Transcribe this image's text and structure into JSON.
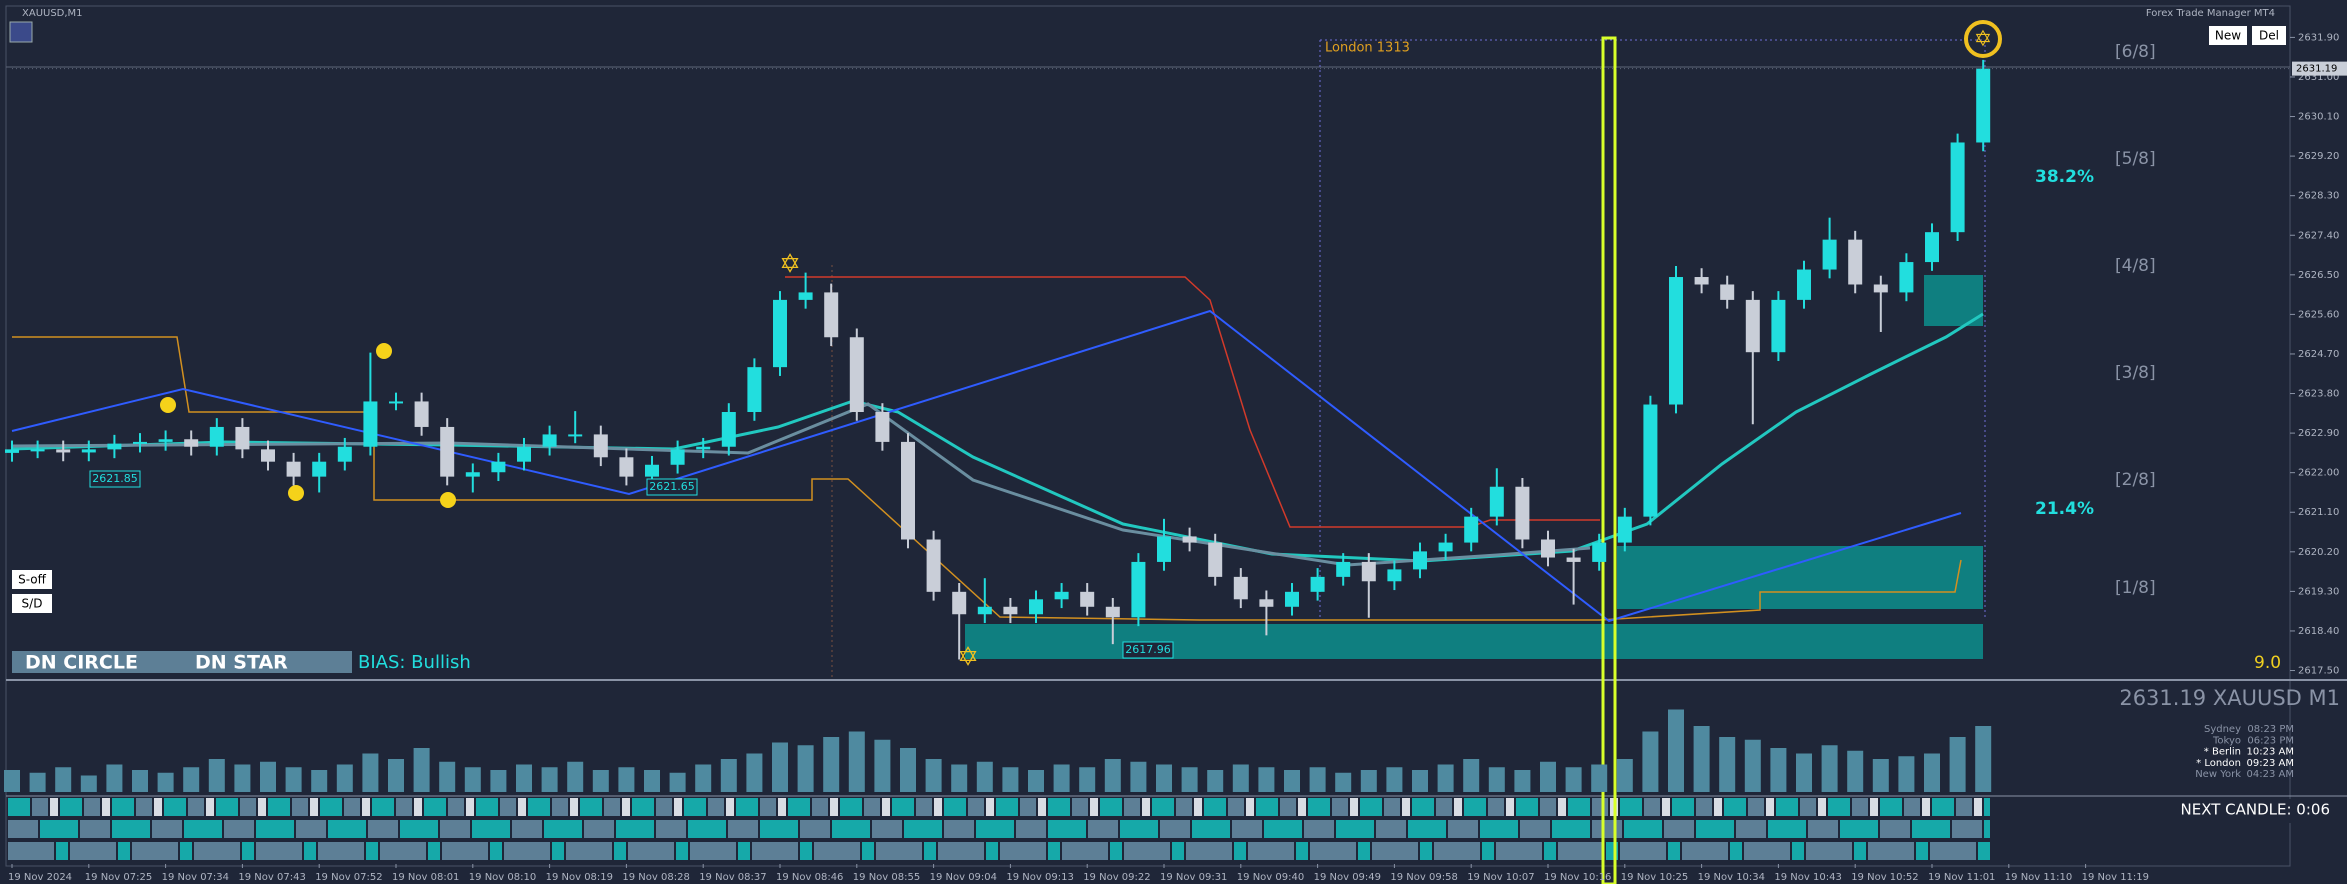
{
  "chart_data": {
    "type": "candlestick",
    "symbol": "XAUUSD,M1",
    "categories": [
      "19 Nov 2024",
      null,
      null,
      "19 Nov 07:25",
      null,
      null,
      "19 Nov 07:34",
      null,
      null,
      "19 Nov 07:43",
      null,
      null,
      "19 Nov 07:52",
      null,
      null,
      "19 Nov 08:01",
      null,
      null,
      "19 Nov 08:10",
      null,
      null,
      "19 Nov 08:19",
      null,
      null,
      "19 Nov 08:28",
      null,
      null,
      "19 Nov 08:37",
      null,
      null,
      "19 Nov 08:46",
      null,
      null,
      "19 Nov 08:55",
      null,
      null,
      "19 Nov 09:04",
      null,
      null,
      "19 Nov 09:13",
      null,
      null,
      "19 Nov 09:22",
      null,
      null,
      "19 Nov 09:31",
      null,
      null,
      "19 Nov 09:40",
      null,
      null,
      "19 Nov 09:49",
      null,
      null,
      "19 Nov 09:58",
      null,
      null,
      "19 Nov 10:07",
      null,
      null,
      "19 Nov 10:16",
      null,
      null,
      "19 Nov 10:25",
      null,
      null,
      "19 Nov 10:34",
      null,
      null,
      "19 Nov 10:43",
      null,
      null,
      "19 Nov 10:52",
      null,
      null,
      "19 Nov 11:01",
      null,
      null,
      "19 Nov 11:10",
      null,
      null,
      "19 Nov 11:19"
    ],
    "open": [
      2622.45,
      2622.53,
      2622.53,
      2622.46,
      2622.53,
      2622.66,
      2622.7,
      2622.76,
      2622.59,
      2623.04,
      2622.53,
      2622.25,
      2621.91,
      2622.25,
      2622.59,
      2623.62,
      2623.62,
      2623.04,
      2621.91,
      2622.01,
      2622.25,
      2622.59,
      2622.87,
      2622.87,
      2622.35,
      2621.91,
      2622.18,
      2622.53,
      2622.59,
      2623.38,
      2624.4,
      2625.93,
      2626.1,
      2625.08,
      2623.38,
      2622.7,
      2620.48,
      2619.29,
      2618.78,
      2618.95,
      2618.78,
      2619.12,
      2619.29,
      2618.95,
      2618.71,
      2619.97,
      2620.55,
      2620.41,
      2619.63,
      2619.12,
      2618.95,
      2619.29,
      2619.63,
      2619.97,
      2619.53,
      2619.8,
      2620.21,
      2620.41,
      2621.0,
      2621.68,
      2620.48,
      2620.07,
      2619.97,
      2620.41,
      2621.0,
      2623.55,
      2626.45,
      2626.28,
      2625.93,
      2624.74,
      2625.93,
      2626.62,
      2627.3,
      2626.28,
      2626.1,
      2626.79,
      2627.47,
      2629.51,
      null,
      null,
      null,
      null
    ],
    "high": [
      2622.73,
      2622.73,
      2622.73,
      2622.73,
      2622.86,
      2622.9,
      2622.96,
      2622.96,
      2623.24,
      2623.24,
      2622.73,
      2622.45,
      2622.45,
      2622.79,
      2624.73,
      2623.82,
      2623.82,
      2623.24,
      2622.21,
      2622.45,
      2622.79,
      2623.07,
      2623.4,
      2623.07,
      2622.55,
      2622.38,
      2622.73,
      2622.79,
      2623.58,
      2624.6,
      2626.13,
      2626.55,
      2626.3,
      2625.28,
      2623.58,
      2622.9,
      2620.68,
      2619.49,
      2619.6,
      2619.15,
      2619.32,
      2619.49,
      2619.49,
      2619.15,
      2620.17,
      2620.95,
      2620.75,
      2620.61,
      2619.83,
      2619.32,
      2619.49,
      2619.83,
      2620.17,
      2620.17,
      2620.0,
      2620.41,
      2620.61,
      2621.2,
      2622.1,
      2621.88,
      2620.68,
      2620.27,
      2620.61,
      2621.2,
      2623.75,
      2626.7,
      2626.65,
      2626.48,
      2626.13,
      2626.13,
      2626.82,
      2627.8,
      2627.5,
      2626.48,
      2626.99,
      2627.67,
      2629.71,
      2631.39,
      null,
      null,
      null,
      null
    ],
    "low": [
      2622.25,
      2622.33,
      2622.26,
      2622.26,
      2622.33,
      2622.46,
      2622.5,
      2622.39,
      2622.39,
      2622.33,
      2622.05,
      2621.71,
      2621.55,
      2622.05,
      2622.39,
      2623.42,
      2622.84,
      2621.71,
      2621.55,
      2621.81,
      2622.05,
      2622.39,
      2622.67,
      2622.15,
      2621.71,
      2621.71,
      2621.98,
      2622.33,
      2622.39,
      2623.18,
      2624.2,
      2625.73,
      2624.88,
      2623.18,
      2622.5,
      2620.28,
      2619.09,
      2617.75,
      2618.58,
      2618.58,
      2618.58,
      2618.92,
      2618.75,
      2618.1,
      2618.51,
      2619.77,
      2620.21,
      2619.43,
      2618.92,
      2618.3,
      2618.75,
      2619.09,
      2619.43,
      2618.7,
      2619.33,
      2619.6,
      2620.01,
      2620.21,
      2620.8,
      2620.28,
      2619.87,
      2619.0,
      2619.77,
      2620.21,
      2620.8,
      2623.35,
      2626.08,
      2625.73,
      2623.1,
      2624.54,
      2625.73,
      2626.42,
      2626.08,
      2625.2,
      2625.9,
      2626.59,
      2627.27,
      2629.31,
      null,
      null,
      null,
      null
    ],
    "close": [
      2622.53,
      2622.53,
      2622.46,
      2622.53,
      2622.66,
      2622.7,
      2622.76,
      2622.59,
      2623.04,
      2622.53,
      2622.25,
      2621.91,
      2622.25,
      2622.59,
      2623.62,
      2623.62,
      2623.04,
      2621.91,
      2622.01,
      2622.25,
      2622.59,
      2622.87,
      2622.87,
      2622.35,
      2621.91,
      2622.18,
      2622.53,
      2622.59,
      2623.38,
      2624.4,
      2625.93,
      2626.1,
      2625.08,
      2623.38,
      2622.7,
      2620.48,
      2619.29,
      2618.78,
      2618.95,
      2618.78,
      2619.12,
      2619.29,
      2618.95,
      2618.71,
      2619.97,
      2620.55,
      2620.41,
      2619.63,
      2619.12,
      2618.95,
      2619.29,
      2619.63,
      2619.97,
      2619.53,
      2619.8,
      2620.21,
      2620.41,
      2621.0,
      2621.68,
      2620.48,
      2620.07,
      2619.97,
      2620.41,
      2621.0,
      2623.55,
      2626.45,
      2626.28,
      2625.93,
      2624.74,
      2625.93,
      2626.62,
      2627.3,
      2626.28,
      2626.1,
      2626.79,
      2627.47,
      2629.51,
      2631.19,
      null,
      null,
      null,
      null
    ],
    "volume": [
      40,
      35,
      45,
      30,
      50,
      40,
      35,
      45,
      60,
      50,
      55,
      45,
      40,
      50,
      70,
      60,
      80,
      55,
      45,
      40,
      50,
      45,
      55,
      40,
      45,
      40,
      35,
      50,
      60,
      70,
      90,
      85,
      100,
      110,
      95,
      80,
      60,
      50,
      55,
      45,
      40,
      50,
      45,
      60,
      55,
      50,
      45,
      40,
      50,
      45,
      40,
      45,
      35,
      40,
      45,
      40,
      50,
      60,
      45,
      40,
      55,
      45,
      50,
      60,
      110,
      150,
      120,
      100,
      95,
      80,
      70,
      85,
      75,
      60,
      65,
      70,
      100,
      120,
      null,
      null,
      null,
      null
    ],
    "up_color": "#22dede",
    "down_color": "#c9ced8",
    "volume_color": "#4f8aa0",
    "ylim": [
      2617.33,
      2632.58
    ],
    "yticks": [
      {
        "value": 2617.5,
        "label": "2617.50"
      },
      {
        "value": 2618.4,
        "label": "2618.40"
      },
      {
        "value": 2619.3,
        "label": "2619.30"
      },
      {
        "value": 2620.2,
        "label": "2620.20"
      },
      {
        "value": 2621.1,
        "label": "2621.10"
      },
      {
        "value": 2622,
        "label": "2622.00"
      },
      {
        "value": 2622.9,
        "label": "2622.90"
      },
      {
        "value": 2623.8,
        "label": "2623.80"
      },
      {
        "value": 2624.7,
        "label": "2624.70"
      },
      {
        "value": 2625.6,
        "label": "2625.60"
      },
      {
        "value": 2626.5,
        "label": "2626.50"
      },
      {
        "value": 2627.4,
        "label": "2627.40"
      },
      {
        "value": 2628.3,
        "label": "2628.30"
      },
      {
        "value": 2629.2,
        "label": "2629.20"
      },
      {
        "value": 2630.1,
        "label": "2630.10"
      },
      {
        "value": 2631,
        "label": "2631.00"
      },
      {
        "value": 2631.9,
        "label": "2631.90"
      }
    ],
    "price_tag": 2631.19
  },
  "ui": {
    "app": "Forex Trade Manager MT4",
    "buttons": [
      "New",
      "Del"
    ],
    "london": "London 1313",
    "fib": [
      "[6/8]",
      "[5/8]",
      "[4/8]",
      "[3/8]",
      "[2/8]",
      "[1/8]"
    ],
    "pct": [
      "38.2%",
      "21.4%"
    ],
    "score": "9.0",
    "side_buttons": [
      "S-off",
      "S/D"
    ],
    "signals": [
      "DN CIRCLE",
      "DN STAR"
    ],
    "bias": "BIAS: Bullish",
    "price_boxes": [
      "2621.85",
      "2621.65",
      "2617.96"
    ],
    "quote": "2631.19 XAUUSD M1",
    "sessions": [
      [
        "Sydney",
        "08:23 PM"
      ],
      [
        "Tokyo",
        "06:23 PM"
      ],
      [
        "* Berlin",
        "10:23 AM"
      ],
      [
        "* London",
        "09:23 AM"
      ],
      [
        "New York",
        "04:23 AM"
      ]
    ],
    "next_candle": "NEXT CANDLE: 0:06"
  }
}
